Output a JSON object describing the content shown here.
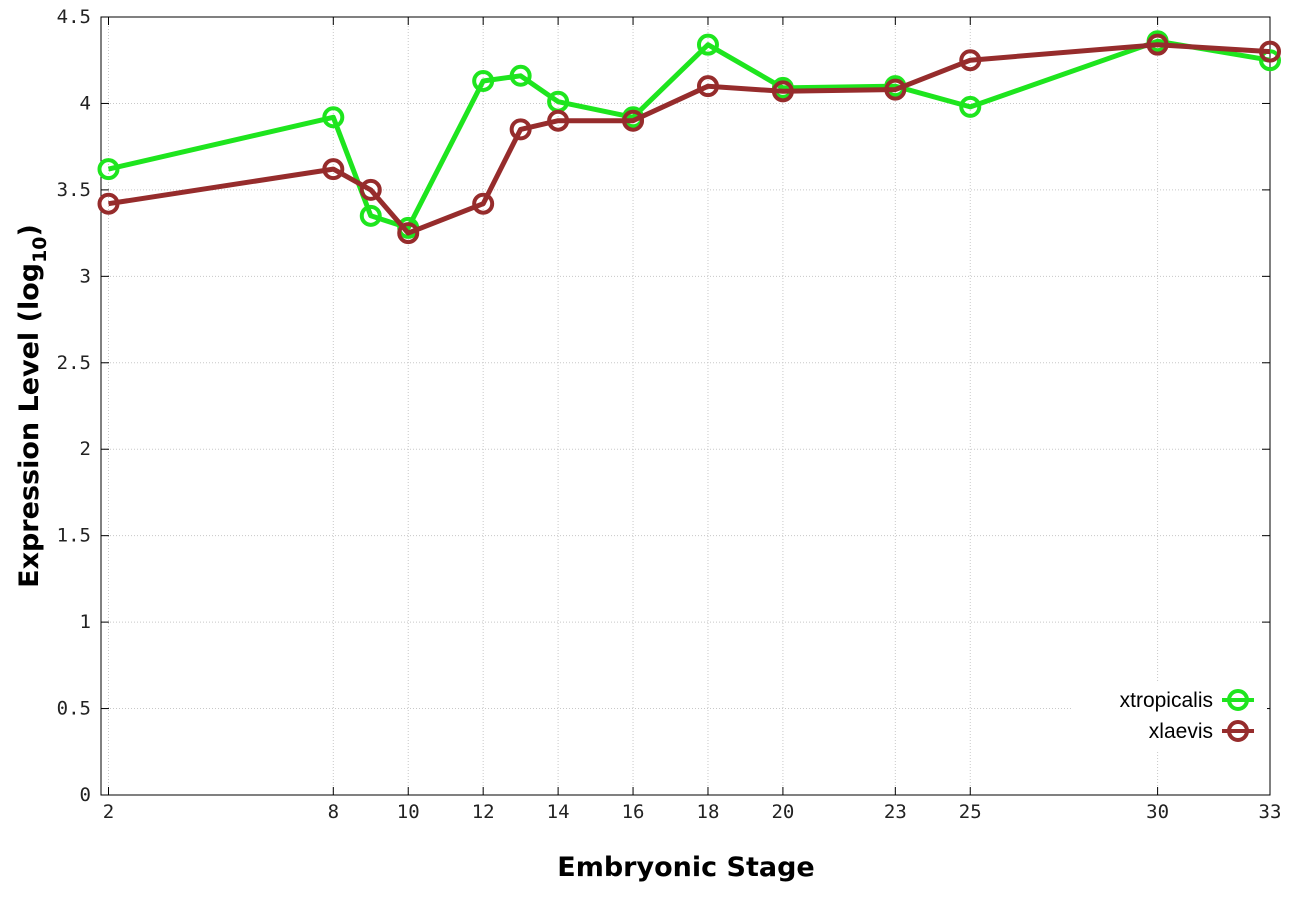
{
  "chart_data": {
    "type": "line",
    "xlabel": "Embryonic Stage",
    "ylabel": "Expression Level",
    "ylabel_sub": "10",
    "ylim": [
      0,
      4.5
    ],
    "x_ticks": [
      2,
      8,
      10,
      12,
      14,
      16,
      18,
      20,
      23,
      25,
      30,
      33
    ],
    "y_ticks": [
      0,
      0.5,
      1,
      1.5,
      2,
      2.5,
      3,
      3.5,
      4,
      4.5
    ],
    "y_tick_labels": [
      "0",
      "0.5",
      "1",
      "1.5",
      "2",
      "2.5",
      "3",
      "3.5",
      "4",
      "4.5"
    ],
    "x": [
      2,
      8,
      9,
      10,
      12,
      13,
      14,
      16,
      18,
      20,
      23,
      25,
      30,
      33
    ],
    "grid": true,
    "legend_position": "bottom-right",
    "series": [
      {
        "name": "xtropicalis",
        "color": "#1ee51e",
        "values": [
          3.62,
          3.92,
          3.35,
          3.28,
          4.13,
          4.16,
          4.01,
          3.92,
          4.34,
          4.09,
          4.1,
          3.98,
          4.36,
          4.25
        ]
      },
      {
        "name": "xlaevis",
        "color": "#962c2c",
        "values": [
          3.42,
          3.62,
          3.5,
          3.25,
          3.42,
          3.85,
          3.9,
          3.9,
          4.1,
          4.07,
          4.08,
          4.25,
          4.34,
          4.3
        ]
      }
    ]
  }
}
